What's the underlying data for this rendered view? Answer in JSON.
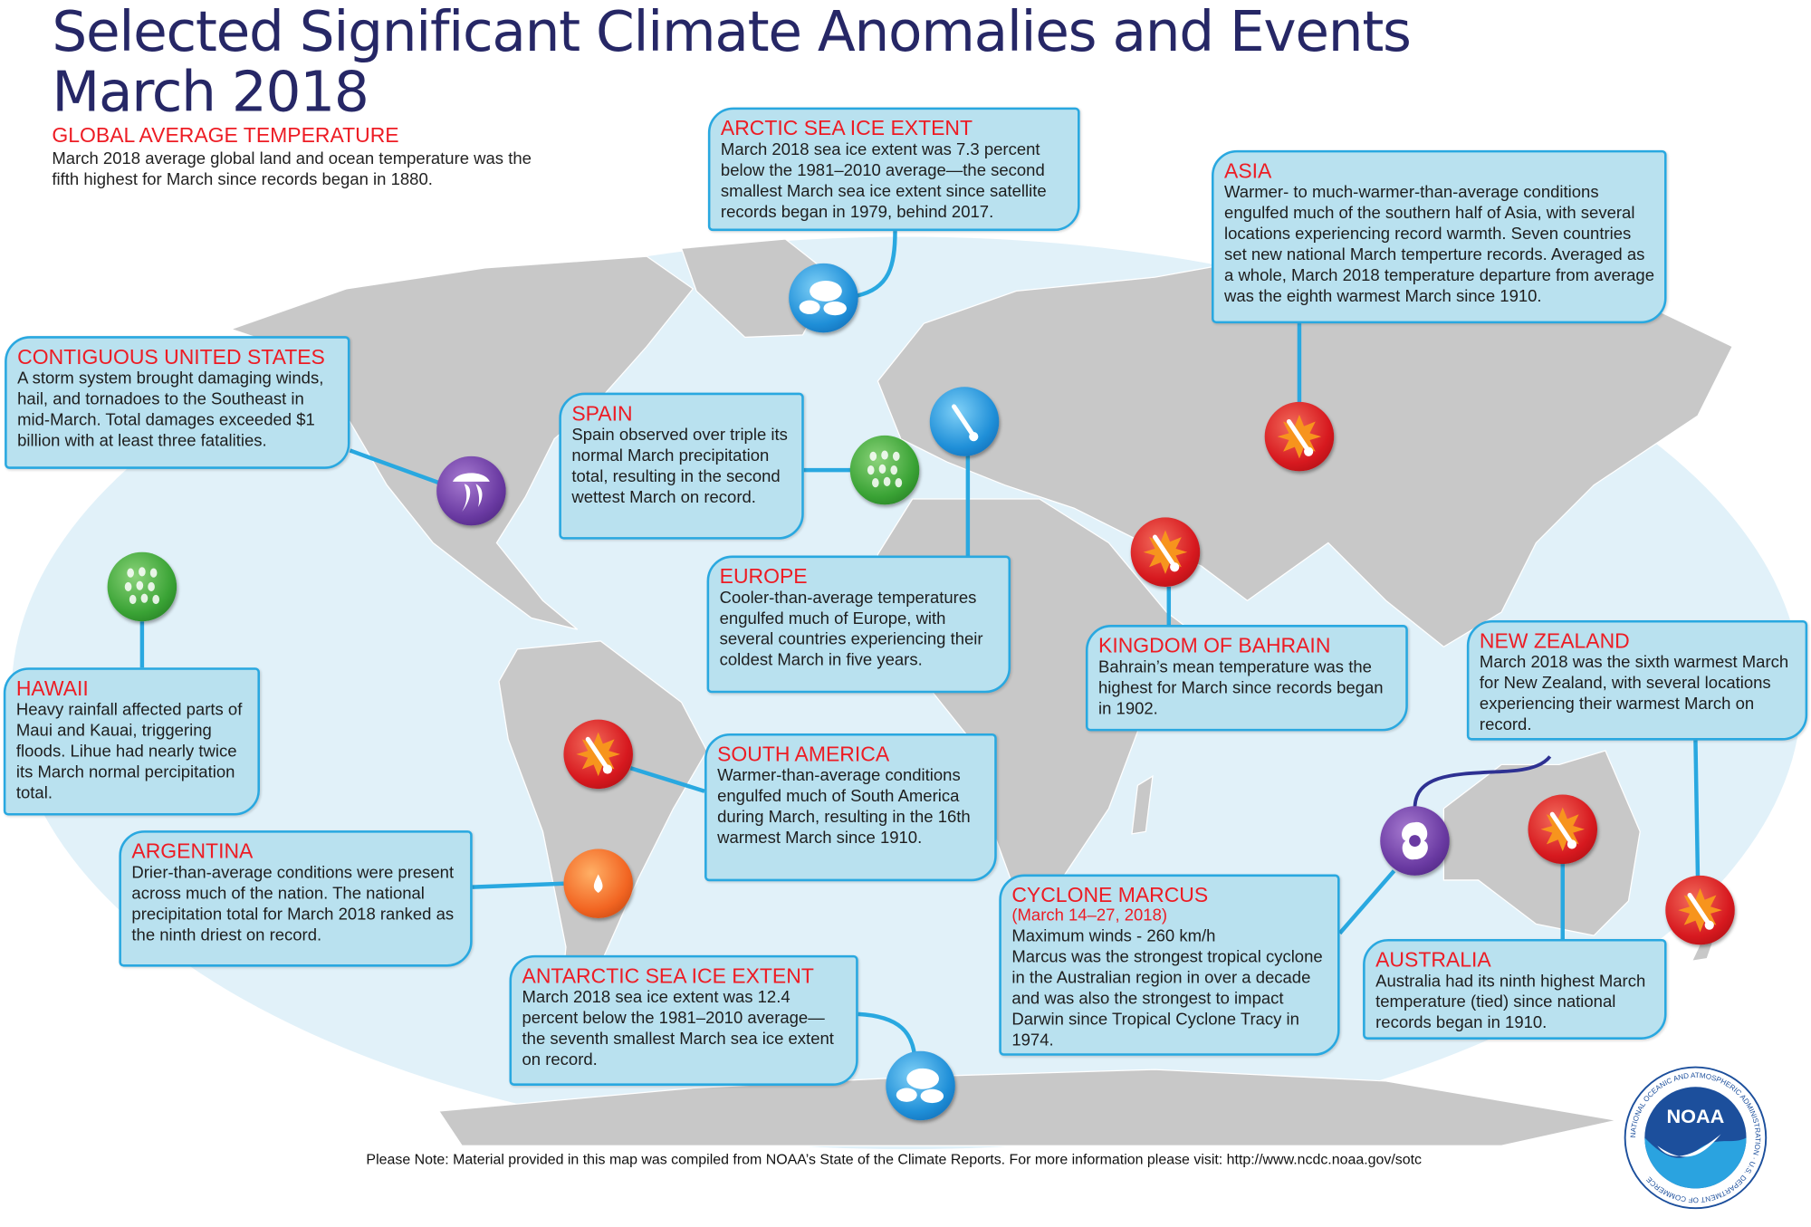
{
  "title": {
    "line1": "Selected Significant Climate Anomalies and Events",
    "line2": "March 2018"
  },
  "global": {
    "heading": "GLOBAL AVERAGE TEMPERATURE",
    "text": "March 2018 average global land and ocean temperature was the fifth highest for March since records began in 1880."
  },
  "colors": {
    "heading_red": "#ed1c24",
    "title_navy": "#262766",
    "box_fill": "#b9e1ef",
    "box_border": "#29a8e0",
    "ocean": "#e1f1f9",
    "land": "#c8c8c8"
  },
  "events": [
    {
      "id": "arctic",
      "heading": "ARCTIC SEA ICE EXTENT",
      "text": "March 2018 sea ice extent was 7.3 percent below the 1981–2010 average—the second smallest March sea ice extent since satellite records began in 1979, behind 2017.",
      "icon": "sea-ice"
    },
    {
      "id": "asia",
      "heading": "ASIA",
      "text": "Warmer- to much-warmer-than-average conditions engulfed much of the southern half of Asia, with several locations experiencing record warmth. Seven countries set new national March temperture records. Averaged as a whole, March 2018 temperature departure from average was the eighth warmest March since 1910.",
      "icon": "warm-thermometer"
    },
    {
      "id": "conus",
      "heading": "CONTIGUOUS UNITED STATES",
      "text": "A storm system brought damaging winds, hail, and tornadoes to the Southeast in mid-March. Total damages exceeded $1 billion with at least three fatalities.",
      "icon": "severe-storm"
    },
    {
      "id": "spain",
      "heading": "SPAIN",
      "text": "Spain observed over triple its normal March precipitation total, resulting in the second wettest March on record.",
      "icon": "heavy-rain"
    },
    {
      "id": "europe",
      "heading": "EUROPE",
      "text": "Cooler-than-average temperatures engulfed much of Europe, with several countries experiencing their coldest March in five years.",
      "icon": "cold-thermometer"
    },
    {
      "id": "bahrain",
      "heading": "KINGDOM OF BAHRAIN",
      "text": "Bahrain’s mean temperature was the highest for March since records began in 1902.",
      "icon": "warm-thermometer"
    },
    {
      "id": "nz",
      "heading": "NEW ZEALAND",
      "text": "March 2018 was the sixth warmest March for New Zealand, with several locations experiencing their warmest March on record.",
      "icon": "warm-thermometer"
    },
    {
      "id": "hawaii",
      "heading": "HAWAII",
      "text": "Heavy rainfall affected parts of Maui and Kauai, triggering floods. Lihue had nearly twice its March normal percipitation total.",
      "icon": "heavy-rain"
    },
    {
      "id": "southamerica",
      "heading": "SOUTH AMERICA",
      "text": "Warmer-than-average conditions engulfed much of South America during March, resulting in the 16th warmest March since 1910.",
      "icon": "warm-thermometer"
    },
    {
      "id": "argentina",
      "heading": "ARGENTINA",
      "text": "Drier-than-average conditions were present across much of the nation. The national precipitation total for March 2018 ranked as the ninth driest on record.",
      "icon": "drought"
    },
    {
      "id": "antarctic",
      "heading": "ANTARCTIC SEA ICE EXTENT",
      "text": "March 2018 sea ice extent was 12.4 percent below the 1981–2010 average—the seventh smallest March sea ice extent on record.",
      "icon": "sea-ice"
    },
    {
      "id": "cyclone",
      "heading": "CYCLONE MARCUS",
      "subheading": "(March 14–27, 2018)",
      "text_lines": [
        "Maximum winds - 260 km/h",
        "Marcus was the strongest tropical cyclone in the Australian region in over a decade and was also the strongest to impact Darwin since Tropical Cyclone Tracy in 1974."
      ],
      "icon": "tropical-cyclone"
    },
    {
      "id": "australia",
      "heading": "AUSTRALIA",
      "text": "Australia had its  ninth highest March temperature (tied) since national records began in 1910.",
      "icon": "warm-thermometer"
    }
  ],
  "footnote": "Please Note: Material provided in this map was compiled from NOAA’s State of the Climate Reports. For more information please visit: http://www.ncdc.noaa.gov/sotc",
  "logo": {
    "text": "NOAA",
    "ring_text": "NATIONAL OCEANIC AND ATMOSPHERIC ADMINISTRATION · U.S. DEPARTMENT OF COMMERCE"
  }
}
